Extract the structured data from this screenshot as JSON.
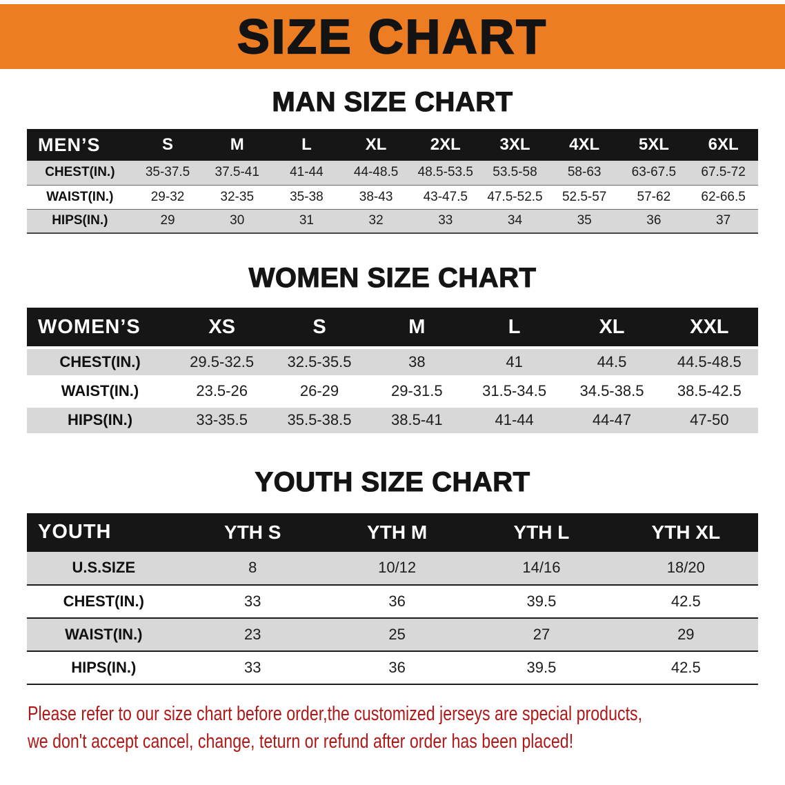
{
  "banner": {
    "title": "SIZE CHART"
  },
  "colors": {
    "banner_bg": "#ed7d23",
    "table_header_bg": "#161616",
    "row_shaded_bg": "#d8d8d8",
    "footer_text": "#b01818"
  },
  "sections": [
    {
      "id": "men",
      "heading": "MAN SIZE CHART",
      "corner_label": "MEN’S",
      "columns": [
        "S",
        "M",
        "L",
        "XL",
        "2XL",
        "3XL",
        "4XL",
        "5XL",
        "6XL"
      ],
      "rows": [
        {
          "label": "CHEST(IN.)",
          "values": [
            "35-37.5",
            "37.5-41",
            "41-44",
            "44-48.5",
            "48.5-53.5",
            "53.5-58",
            "58-63",
            "63-67.5",
            "67.5-72"
          ]
        },
        {
          "label": "WAIST(IN.)",
          "values": [
            "29-32",
            "32-35",
            "35-38",
            "38-43",
            "43-47.5",
            "47.5-52.5",
            "52.5-57",
            "57-62",
            "62-66.5"
          ]
        },
        {
          "label": "HIPS(IN.)",
          "values": [
            "29",
            "30",
            "31",
            "32",
            "33",
            "34",
            "35",
            "36",
            "37"
          ]
        }
      ]
    },
    {
      "id": "women",
      "heading": "WOMEN SIZE CHART",
      "corner_label": "WOMEN’S",
      "columns": [
        "XS",
        "S",
        "M",
        "L",
        "XL",
        "XXL"
      ],
      "rows": [
        {
          "label": "CHEST(IN.)",
          "values": [
            "29.5-32.5",
            "32.5-35.5",
            "38",
            "41",
            "44.5",
            "44.5-48.5"
          ]
        },
        {
          "label": "WAIST(IN.)",
          "values": [
            "23.5-26",
            "26-29",
            "29-31.5",
            "31.5-34.5",
            "34.5-38.5",
            "38.5-42.5"
          ]
        },
        {
          "label": "HIPS(IN.)",
          "values": [
            "33-35.5",
            "35.5-38.5",
            "38.5-41",
            "41-44",
            "44-47",
            "47-50"
          ]
        }
      ]
    },
    {
      "id": "youth",
      "heading": "YOUTH SIZE CHART",
      "corner_label": "YOUTH",
      "columns": [
        "YTH S",
        "YTH M",
        "YTH L",
        "YTH XL"
      ],
      "rows": [
        {
          "label": "U.S.SIZE",
          "values": [
            "8",
            "10/12",
            "14/16",
            "18/20"
          ]
        },
        {
          "label": "CHEST(IN.)",
          "values": [
            "33",
            "36",
            "39.5",
            "42.5"
          ]
        },
        {
          "label": "WAIST(IN.)",
          "values": [
            "23",
            "25",
            "27",
            "29"
          ]
        },
        {
          "label": "HIPS(IN.)",
          "values": [
            "33",
            "36",
            "39.5",
            "42.5"
          ]
        }
      ]
    }
  ],
  "footer": {
    "lines": [
      "Please refer to our size chart before order,the customized jerseys are special products,",
      "we don't accept cancel, change, teturn or refund after order has been placed!"
    ]
  }
}
